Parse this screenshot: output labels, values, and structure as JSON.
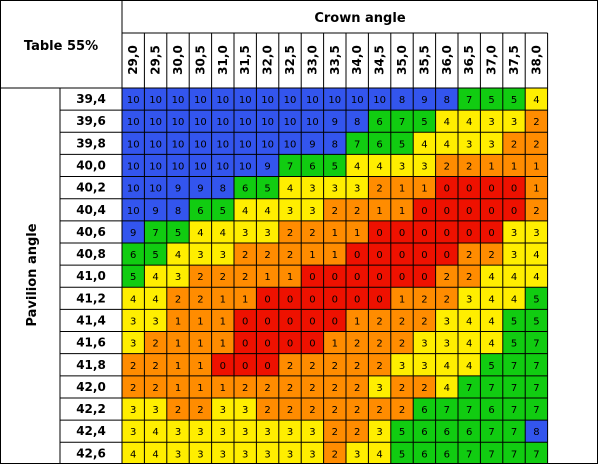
{
  "chart_data": {
    "type": "heatmap",
    "title": "Table 55%",
    "xlabel": "Crown angle",
    "ylabel": "Pavilion angle",
    "x": [
      "29,0",
      "29,5",
      "30,0",
      "30,5",
      "31,0",
      "31,5",
      "32,0",
      "32,5",
      "33,0",
      "33,5",
      "34,0",
      "34,5",
      "35,0",
      "35,5",
      "36,0",
      "36,5",
      "37,0",
      "37,5",
      "38,0"
    ],
    "y": [
      "39,4",
      "39,6",
      "39,8",
      "40,0",
      "40,2",
      "40,4",
      "40,6",
      "40,8",
      "41,0",
      "41,2",
      "41,4",
      "41,6",
      "41,8",
      "42,0",
      "42,2",
      "42,4",
      "42,6"
    ],
    "values": [
      [
        10,
        10,
        10,
        10,
        10,
        10,
        10,
        10,
        10,
        10,
        10,
        10,
        8,
        9,
        8,
        7,
        5,
        5,
        4
      ],
      [
        10,
        10,
        10,
        10,
        10,
        10,
        10,
        10,
        10,
        9,
        8,
        6,
        7,
        5,
        4,
        4,
        3,
        3,
        2
      ],
      [
        10,
        10,
        10,
        10,
        10,
        10,
        10,
        10,
        9,
        8,
        7,
        6,
        5,
        4,
        4,
        3,
        3,
        2,
        2
      ],
      [
        10,
        10,
        10,
        10,
        10,
        10,
        9,
        7,
        6,
        5,
        4,
        4,
        3,
        3,
        2,
        2,
        1,
        1,
        1
      ],
      [
        10,
        10,
        9,
        9,
        8,
        6,
        5,
        4,
        3,
        3,
        3,
        2,
        1,
        1,
        0,
        0,
        0,
        0,
        1
      ],
      [
        10,
        9,
        8,
        6,
        5,
        4,
        4,
        3,
        3,
        2,
        2,
        1,
        1,
        0,
        0,
        0,
        0,
        0,
        2
      ],
      [
        9,
        7,
        5,
        4,
        4,
        3,
        3,
        2,
        2,
        1,
        1,
        0,
        0,
        0,
        0,
        0,
        0,
        3,
        3
      ],
      [
        6,
        5,
        4,
        3,
        3,
        2,
        2,
        2,
        1,
        1,
        0,
        0,
        0,
        0,
        0,
        2,
        2,
        3,
        4
      ],
      [
        5,
        4,
        3,
        2,
        2,
        2,
        1,
        1,
        0,
        0,
        0,
        0,
        0,
        0,
        2,
        2,
        4,
        4,
        4
      ],
      [
        4,
        4,
        2,
        2,
        1,
        1,
        0,
        0,
        0,
        0,
        0,
        0,
        1,
        2,
        2,
        3,
        4,
        4,
        5
      ],
      [
        3,
        3,
        1,
        1,
        1,
        0,
        0,
        0,
        0,
        0,
        1,
        2,
        2,
        2,
        3,
        4,
        4,
        5,
        5
      ],
      [
        3,
        2,
        1,
        1,
        1,
        0,
        0,
        0,
        0,
        1,
        2,
        2,
        2,
        3,
        3,
        4,
        4,
        5,
        7
      ],
      [
        2,
        2,
        1,
        1,
        0,
        0,
        0,
        2,
        2,
        2,
        2,
        2,
        3,
        3,
        4,
        4,
        5,
        7,
        7
      ],
      [
        2,
        2,
        1,
        1,
        1,
        2,
        2,
        2,
        2,
        2,
        2,
        3,
        2,
        2,
        4,
        7,
        7,
        7,
        7
      ],
      [
        3,
        3,
        2,
        2,
        3,
        3,
        2,
        2,
        2,
        2,
        2,
        2,
        2,
        6,
        7,
        7,
        6,
        7,
        7
      ],
      [
        3,
        4,
        3,
        3,
        3,
        3,
        3,
        3,
        3,
        2,
        2,
        3,
        5,
        6,
        6,
        6,
        7,
        7,
        8
      ],
      [
        4,
        4,
        3,
        3,
        3,
        3,
        3,
        3,
        3,
        2,
        3,
        4,
        5,
        6,
        6,
        7,
        7,
        7,
        7
      ]
    ],
    "value_colors": {
      "0": "#ee1100",
      "1": "#ff8c00",
      "2": "#ff8c00",
      "3": "#ffee00",
      "4": "#ffee00",
      "5": "#11cc11",
      "6": "#11cc11",
      "7": "#11cc11",
      "8": "#3355ee",
      "9": "#3355ee",
      "10": "#3355ee"
    },
    "grid": true,
    "value_labels": true
  }
}
